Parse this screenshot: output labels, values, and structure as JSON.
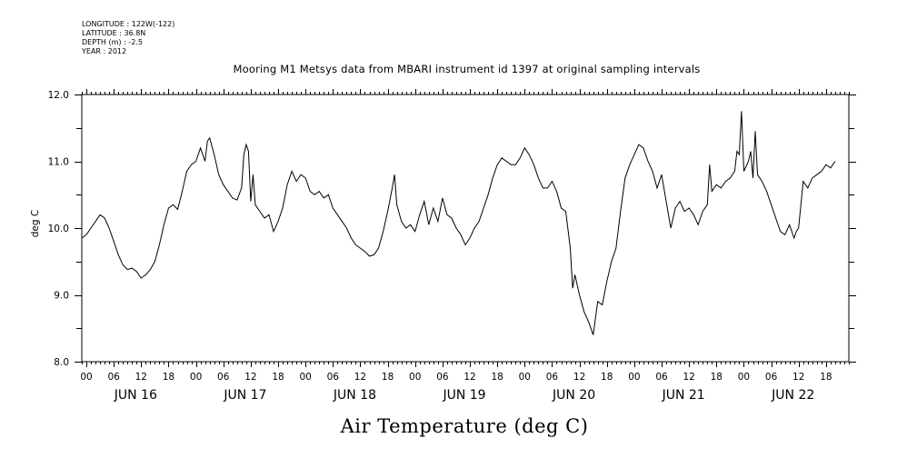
{
  "meta": {
    "longitude": "LONGITUDE : 122W(-122)",
    "latitude": "LATITUDE : 36.8N",
    "depth": "DEPTH (m) : -2.5",
    "year": "YEAR : 2012"
  },
  "chart_data": {
    "type": "line",
    "title": "Mooring M1 Metsys data from MBARI instrument id 1397 at original sampling intervals",
    "xlabel": "Air Temperature (deg C)",
    "ylabel": "deg C",
    "ylim": [
      8.0,
      12.0
    ],
    "y_ticks": [
      "8.0",
      "9.0",
      "10.0",
      "11.0",
      "12.0"
    ],
    "x_hour_labels": [
      "00",
      "06",
      "12",
      "18",
      "00",
      "06",
      "12",
      "18",
      "00",
      "06",
      "12",
      "18",
      "00",
      "06",
      "12",
      "18",
      "00",
      "06",
      "12",
      "18",
      "00",
      "06",
      "12",
      "18",
      "00",
      "06",
      "12",
      "18"
    ],
    "x_day_labels": [
      "JUN 16",
      "JUN 17",
      "JUN 18",
      "JUN 19",
      "JUN 20",
      "JUN 21",
      "JUN 22"
    ],
    "x_unit": "hours since JUN 16 00",
    "x_range_hours": [
      -1,
      167
    ],
    "grid": false,
    "series": [
      {
        "points": [
          [
            -1,
            9.85
          ],
          [
            0,
            9.9
          ],
          [
            1,
            10.0
          ],
          [
            2,
            10.1
          ],
          [
            3,
            10.2
          ],
          [
            4,
            10.15
          ],
          [
            5,
            10.0
          ],
          [
            6,
            9.8
          ],
          [
            7,
            9.6
          ],
          [
            8,
            9.45
          ],
          [
            9,
            9.38
          ],
          [
            10,
            9.4
          ],
          [
            11,
            9.35
          ],
          [
            12,
            9.25
          ],
          [
            13,
            9.3
          ],
          [
            14,
            9.38
          ],
          [
            15,
            9.5
          ],
          [
            16,
            9.75
          ],
          [
            17,
            10.05
          ],
          [
            18,
            10.3
          ],
          [
            19,
            10.35
          ],
          [
            20,
            10.28
          ],
          [
            21,
            10.55
          ],
          [
            22,
            10.85
          ],
          [
            23,
            10.95
          ],
          [
            24,
            11.0
          ],
          [
            25,
            11.2
          ],
          [
            26,
            11.0
          ],
          [
            26.5,
            11.3
          ],
          [
            27,
            11.35
          ],
          [
            28,
            11.1
          ],
          [
            29,
            10.8
          ],
          [
            30,
            10.65
          ],
          [
            31,
            10.55
          ],
          [
            32,
            10.45
          ],
          [
            33,
            10.42
          ],
          [
            34,
            10.6
          ],
          [
            34.5,
            11.1
          ],
          [
            35,
            11.25
          ],
          [
            35.5,
            11.15
          ],
          [
            36,
            10.4
          ],
          [
            36.5,
            10.8
          ],
          [
            37,
            10.35
          ],
          [
            38,
            10.25
          ],
          [
            39,
            10.15
          ],
          [
            40,
            10.2
          ],
          [
            41,
            9.95
          ],
          [
            42,
            10.1
          ],
          [
            43,
            10.3
          ],
          [
            44,
            10.65
          ],
          [
            45,
            10.85
          ],
          [
            46,
            10.7
          ],
          [
            47,
            10.8
          ],
          [
            48,
            10.75
          ],
          [
            49,
            10.55
          ],
          [
            50,
            10.5
          ],
          [
            51,
            10.55
          ],
          [
            52,
            10.45
          ],
          [
            53,
            10.5
          ],
          [
            54,
            10.3
          ],
          [
            55,
            10.2
          ],
          [
            56,
            10.1
          ],
          [
            57,
            10.0
          ],
          [
            58,
            9.85
          ],
          [
            59,
            9.75
          ],
          [
            60,
            9.7
          ],
          [
            61,
            9.65
          ],
          [
            62,
            9.58
          ],
          [
            63,
            9.6
          ],
          [
            64,
            9.7
          ],
          [
            65,
            9.95
          ],
          [
            66,
            10.25
          ],
          [
            67,
            10.6
          ],
          [
            67.5,
            10.8
          ],
          [
            68,
            10.35
          ],
          [
            69,
            10.1
          ],
          [
            70,
            10.0
          ],
          [
            71,
            10.05
          ],
          [
            72,
            9.95
          ],
          [
            73,
            10.2
          ],
          [
            74,
            10.4
          ],
          [
            75,
            10.05
          ],
          [
            76,
            10.3
          ],
          [
            77,
            10.1
          ],
          [
            78,
            10.45
          ],
          [
            79,
            10.2
          ],
          [
            80,
            10.15
          ],
          [
            81,
            10.0
          ],
          [
            82,
            9.9
          ],
          [
            83,
            9.75
          ],
          [
            84,
            9.85
          ],
          [
            85,
            10.0
          ],
          [
            86,
            10.1
          ],
          [
            87,
            10.3
          ],
          [
            88,
            10.5
          ],
          [
            89,
            10.75
          ],
          [
            90,
            10.95
          ],
          [
            91,
            11.05
          ],
          [
            92,
            11.0
          ],
          [
            93,
            10.95
          ],
          [
            94,
            10.95
          ],
          [
            95,
            11.05
          ],
          [
            96,
            11.2
          ],
          [
            97,
            11.1
          ],
          [
            98,
            10.95
          ],
          [
            99,
            10.75
          ],
          [
            100,
            10.6
          ],
          [
            101,
            10.6
          ],
          [
            102,
            10.7
          ],
          [
            103,
            10.55
          ],
          [
            104,
            10.3
          ],
          [
            105,
            10.25
          ],
          [
            106,
            9.7
          ],
          [
            106.5,
            9.1
          ],
          [
            107,
            9.3
          ],
          [
            108,
            9.0
          ],
          [
            109,
            8.75
          ],
          [
            110,
            8.6
          ],
          [
            111,
            8.4
          ],
          [
            112,
            8.9
          ],
          [
            113,
            8.85
          ],
          [
            114,
            9.2
          ],
          [
            115,
            9.5
          ],
          [
            116,
            9.7
          ],
          [
            117,
            10.25
          ],
          [
            118,
            10.75
          ],
          [
            119,
            10.95
          ],
          [
            120,
            11.1
          ],
          [
            121,
            11.25
          ],
          [
            122,
            11.2
          ],
          [
            123,
            11.0
          ],
          [
            124,
            10.85
          ],
          [
            125,
            10.6
          ],
          [
            126,
            10.8
          ],
          [
            127,
            10.4
          ],
          [
            128,
            10.0
          ],
          [
            129,
            10.3
          ],
          [
            130,
            10.4
          ],
          [
            131,
            10.25
          ],
          [
            132,
            10.3
          ],
          [
            133,
            10.2
          ],
          [
            134,
            10.05
          ],
          [
            135,
            10.25
          ],
          [
            136,
            10.35
          ],
          [
            136.5,
            10.95
          ],
          [
            137,
            10.55
          ],
          [
            138,
            10.65
          ],
          [
            139,
            10.6
          ],
          [
            140,
            10.7
          ],
          [
            141,
            10.75
          ],
          [
            142,
            10.85
          ],
          [
            142.5,
            11.15
          ],
          [
            143,
            11.1
          ],
          [
            143.5,
            11.75
          ],
          [
            144,
            10.85
          ],
          [
            145,
            11.0
          ],
          [
            145.5,
            11.15
          ],
          [
            146,
            10.75
          ],
          [
            146.5,
            11.45
          ],
          [
            147,
            10.8
          ],
          [
            148,
            10.7
          ],
          [
            149,
            10.55
          ],
          [
            150,
            10.35
          ],
          [
            151,
            10.15
          ],
          [
            152,
            9.95
          ],
          [
            153,
            9.9
          ],
          [
            154,
            10.05
          ],
          [
            155,
            9.85
          ],
          [
            155.5,
            9.95
          ],
          [
            156,
            10.0
          ],
          [
            157,
            10.7
          ],
          [
            158,
            10.6
          ],
          [
            159,
            10.75
          ],
          [
            160,
            10.8
          ],
          [
            161,
            10.85
          ],
          [
            162,
            10.95
          ],
          [
            163,
            10.9
          ],
          [
            164,
            11.0
          ]
        ]
      }
    ]
  }
}
